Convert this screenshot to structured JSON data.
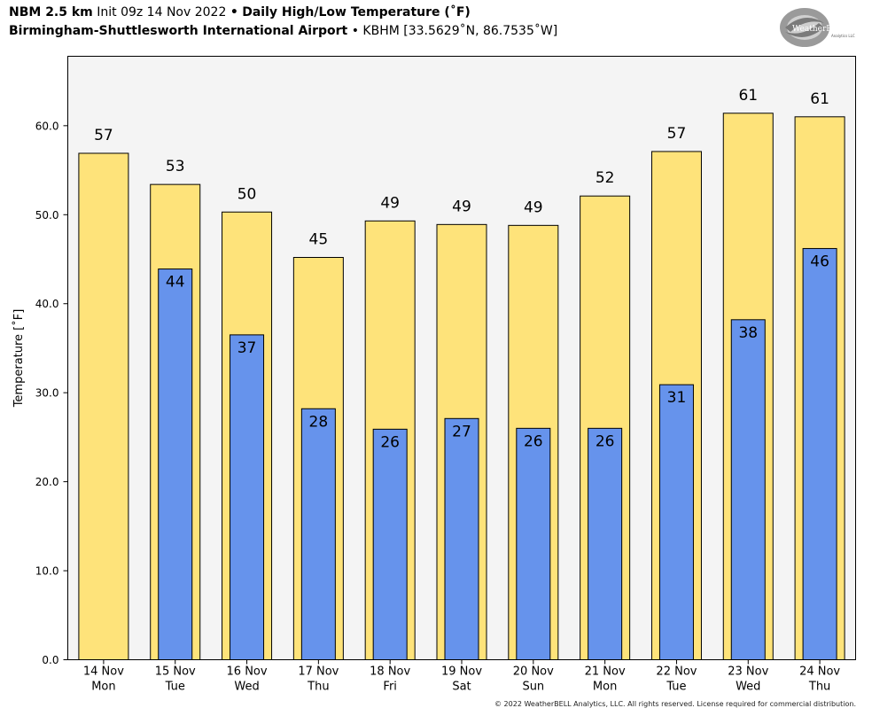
{
  "header": {
    "model": "NBM 2.5 km",
    "init": "Init 09z 14 Nov 2022",
    "bullet": "•",
    "product": "Daily High/Low Temperature (˚F)",
    "station": "Birmingham-Shuttlesworth International Airport",
    "station_info": "KBHM [33.5629˚N, 86.7535˚W]"
  },
  "logo": {
    "text": "WeatherBELL",
    "sub": "Analytics LLC"
  },
  "footer": "© 2022 WeatherBELL Analytics, LLC. All rights reserved. License required for commercial distribution.",
  "colors": {
    "high": "#FEE37A",
    "low": "#6693EC",
    "plot_bg": "#F4F4F4"
  },
  "chart_data": {
    "type": "bar",
    "ylabel": "Temperature [˚F]",
    "ylim": [
      0,
      67.8
    ],
    "yticks": [
      "0.0",
      "10.0",
      "20.0",
      "30.0",
      "40.0",
      "50.0",
      "60.0"
    ],
    "categories": [
      [
        "14 Nov",
        "Mon"
      ],
      [
        "15 Nov",
        "Tue"
      ],
      [
        "16 Nov",
        "Wed"
      ],
      [
        "17 Nov",
        "Thu"
      ],
      [
        "18 Nov",
        "Fri"
      ],
      [
        "19 Nov",
        "Sat"
      ],
      [
        "20 Nov",
        "Sun"
      ],
      [
        "21 Nov",
        "Mon"
      ],
      [
        "22 Nov",
        "Tue"
      ],
      [
        "23 Nov",
        "Wed"
      ],
      [
        "24 Nov",
        "Thu"
      ]
    ],
    "series": [
      {
        "values": [
          56.9,
          53.4,
          50.3,
          45.2,
          49.3,
          48.9,
          48.8,
          52.1,
          57.1,
          61.4,
          61.0
        ],
        "labels": [
          "57",
          "53",
          "50",
          "45",
          "49",
          "49",
          "49",
          "52",
          "57",
          "61",
          "61"
        ]
      },
      {
        "values": [
          null,
          43.9,
          36.5,
          28.2,
          25.9,
          27.1,
          26.0,
          26.0,
          30.9,
          38.2,
          46.2
        ],
        "labels": [
          null,
          "44",
          "37",
          "28",
          "26",
          "27",
          "26",
          "26",
          "31",
          "38",
          "46"
        ]
      }
    ],
    "grid": false,
    "legend": "none"
  }
}
